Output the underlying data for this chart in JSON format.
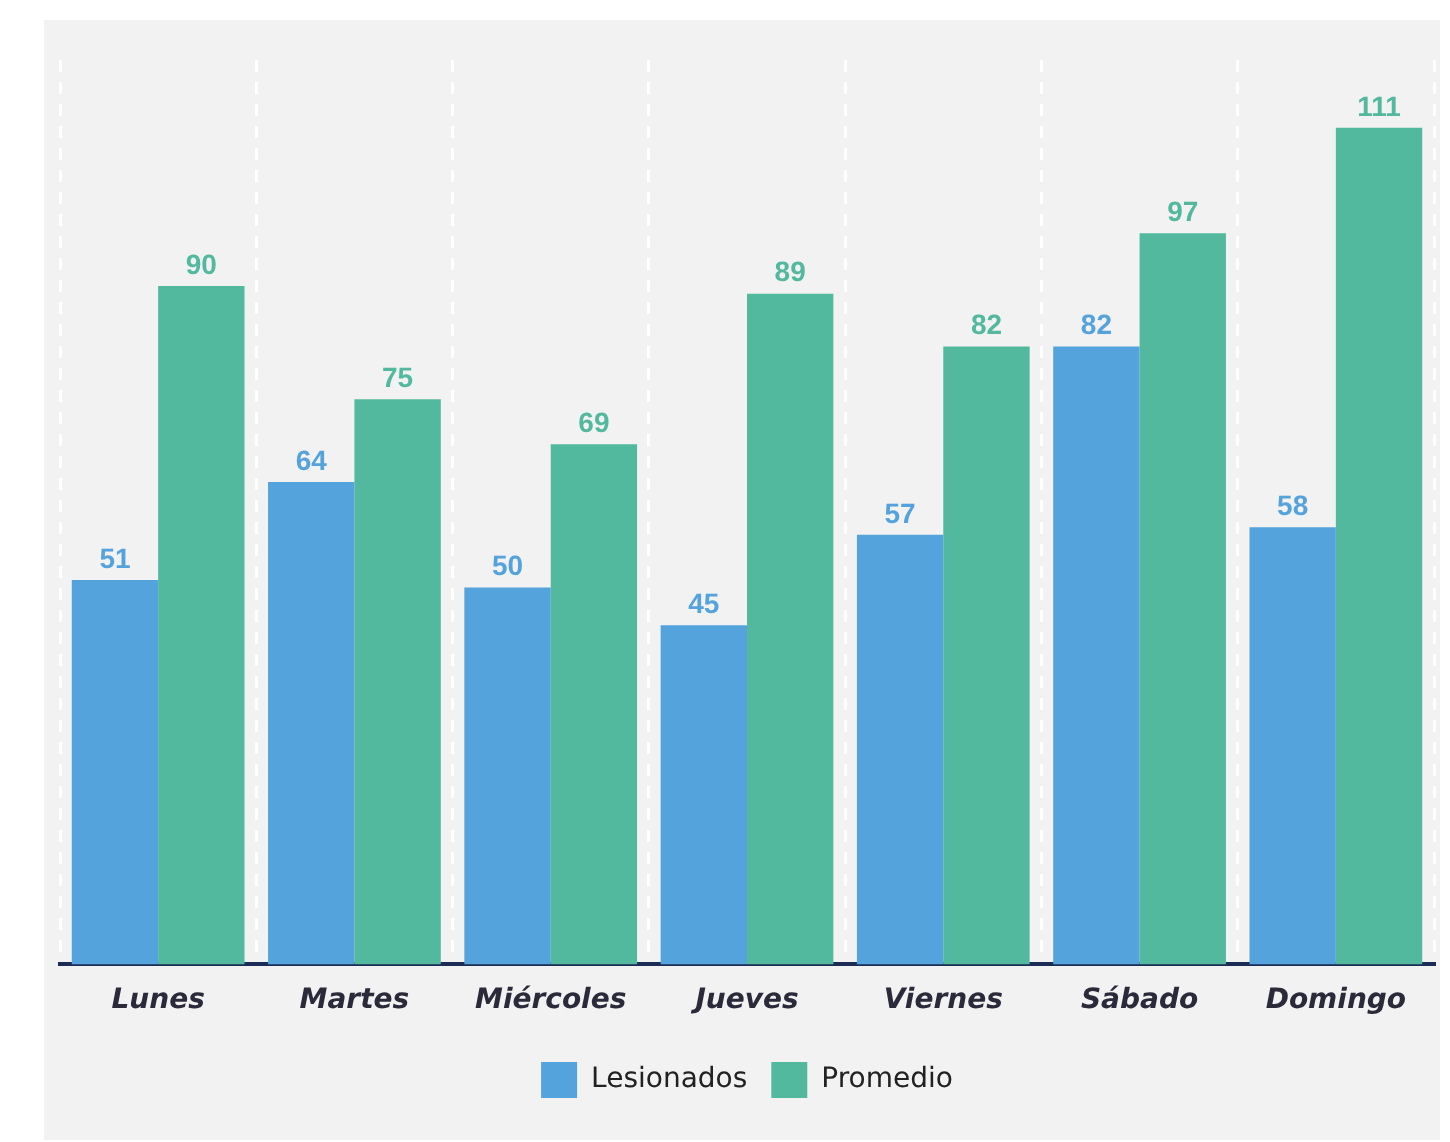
{
  "chart_data": {
    "type": "bar",
    "categories": [
      "Lunes",
      "Martes",
      "Miércoles",
      "Jueves",
      "Viernes",
      "Sábado",
      "Domingo"
    ],
    "series": [
      {
        "name": "Lesionados",
        "color": "#55a3dc",
        "values": [
          51,
          64,
          50,
          45,
          57,
          82,
          58
        ]
      },
      {
        "name": "Promedio",
        "color": "#52b89e",
        "values": [
          90,
          75,
          69,
          89,
          82,
          97,
          111
        ]
      }
    ],
    "data_labels": true,
    "grid": "x",
    "legend": "bottom",
    "tick_labels": "x"
  }
}
